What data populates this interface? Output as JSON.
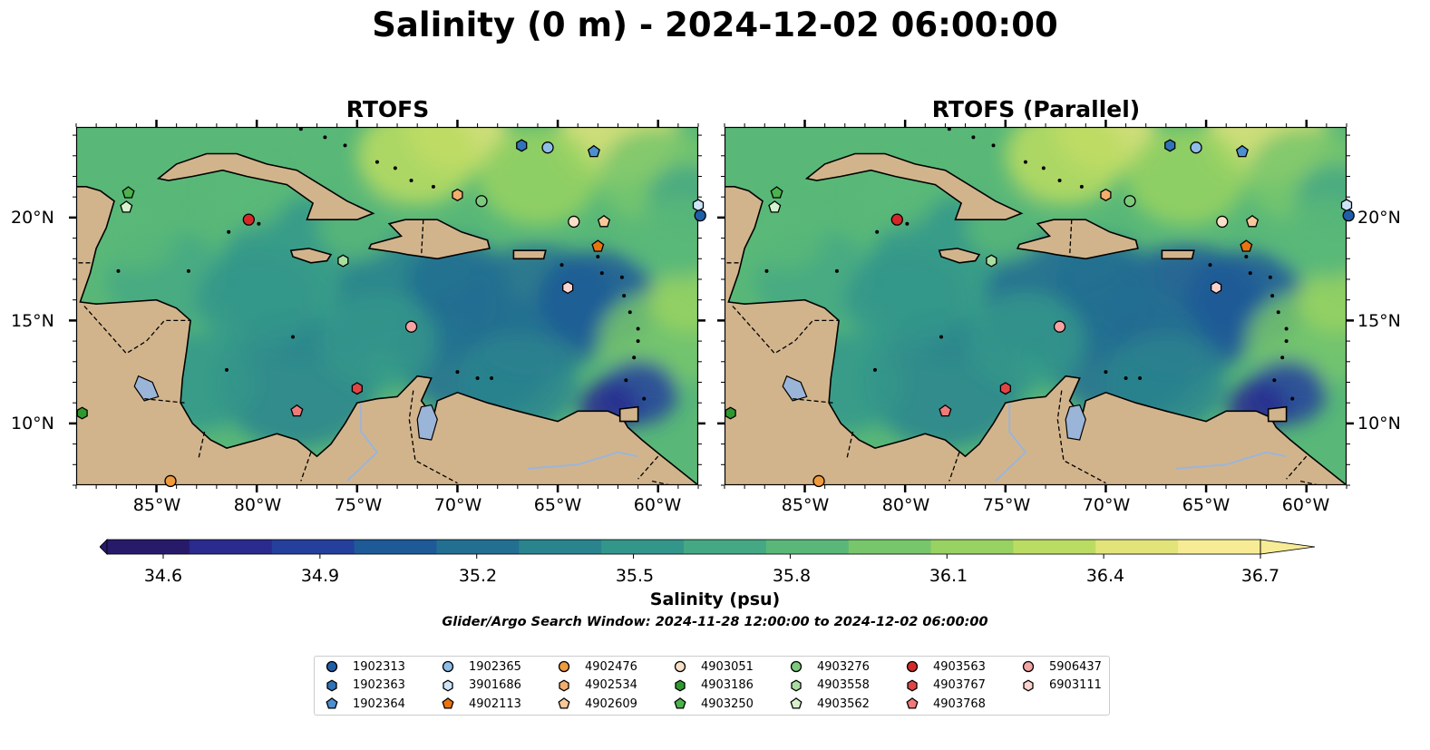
{
  "figure": {
    "title": "Salinity (0 m) - 2024-12-02 06:00:00",
    "panels": [
      {
        "title": "RTOFS",
        "lat_label_side": "left"
      },
      {
        "title": "RTOFS (Parallel)",
        "lat_label_side": "right"
      }
    ],
    "lat_ticks": [
      "20°N",
      "15°N",
      "10°N"
    ],
    "lon_ticks": [
      "85°W",
      "80°W",
      "75°W",
      "70°W",
      "65°W",
      "60°W"
    ]
  },
  "colorbar": {
    "label": "Salinity (psu)",
    "ticks": [
      "34.6",
      "34.9",
      "35.2",
      "35.5",
      "35.8",
      "36.1",
      "36.4",
      "36.7"
    ],
    "range": [
      34.6,
      36.7
    ],
    "extend": "both",
    "colormap": [
      "#281a6b",
      "#2a2a8f",
      "#253f9c",
      "#1e5a98",
      "#236f92",
      "#2a848e",
      "#33968b",
      "#45a884",
      "#59b878",
      "#77c66c",
      "#98d262",
      "#bbdc62",
      "#e2e47a",
      "#f7ec95"
    ]
  },
  "search_window": "Glider/Argo Search Window: 2024-11-28 12:00:00 to 2024-12-02 06:00:00",
  "colors": {
    "land": "#d2b48c",
    "deep_low_salinity": "#281a6b",
    "lake": "#9bb5d9"
  },
  "legend": {
    "placement": "bottom-center",
    "columns": 7,
    "items": [
      {
        "id": "1902313",
        "marker": "circle",
        "color": "#1f5fa8"
      },
      {
        "id": "1902363",
        "marker": "hexagon",
        "color": "#2f73b8"
      },
      {
        "id": "1902364",
        "marker": "pentagon",
        "color": "#4d8fd0"
      },
      {
        "id": "1902365",
        "marker": "circle",
        "color": "#8fbde8"
      },
      {
        "id": "3901686",
        "marker": "hexagon",
        "color": "#cfe5f7"
      },
      {
        "id": "4902113",
        "marker": "pentagon",
        "color": "#e8740f"
      },
      {
        "id": "4902476",
        "marker": "circle",
        "color": "#f09a3e"
      },
      {
        "id": "4902534",
        "marker": "hexagon",
        "color": "#f4ad6c"
      },
      {
        "id": "4902609",
        "marker": "pentagon",
        "color": "#f8c89a"
      },
      {
        "id": "4903051",
        "marker": "circle",
        "color": "#f8e0c8"
      },
      {
        "id": "4903186",
        "marker": "hexagon",
        "color": "#2e9a2e"
      },
      {
        "id": "4903250",
        "marker": "pentagon",
        "color": "#4cb34c"
      },
      {
        "id": "4903276",
        "marker": "circle",
        "color": "#7ccb7c"
      },
      {
        "id": "4903558",
        "marker": "hexagon",
        "color": "#a8dfa0"
      },
      {
        "id": "4903562",
        "marker": "pentagon",
        "color": "#d6f2cc"
      },
      {
        "id": "4903563",
        "marker": "circle",
        "color": "#d62728"
      },
      {
        "id": "4903767",
        "marker": "hexagon",
        "color": "#e04545"
      },
      {
        "id": "4903768",
        "marker": "pentagon",
        "color": "#ef7a7a"
      },
      {
        "id": "5906437",
        "marker": "circle",
        "color": "#f5a3a3"
      },
      {
        "id": "6903111",
        "marker": "hexagon",
        "color": "#fbd3d0"
      }
    ]
  },
  "platforms": [
    {
      "id": "1902363",
      "lon": -66.8,
      "lat": 23.5
    },
    {
      "id": "1902365",
      "lon": -65.5,
      "lat": 23.4
    },
    {
      "id": "1902364",
      "lon": -63.2,
      "lat": 23.2
    },
    {
      "id": "3901686",
      "lon": -58.0,
      "lat": 20.6
    },
    {
      "id": "1902313",
      "lon": -57.9,
      "lat": 20.1
    },
    {
      "id": "4903250",
      "lon": -86.4,
      "lat": 21.2
    },
    {
      "id": "4903562",
      "lon": -86.5,
      "lat": 20.5
    },
    {
      "id": "4903563",
      "lon": -80.4,
      "lat": 19.9
    },
    {
      "id": "4902534",
      "lon": -70.0,
      "lat": 21.1
    },
    {
      "id": "4903276",
      "lon": -68.8,
      "lat": 20.8
    },
    {
      "id": "4903051",
      "lon": -64.2,
      "lat": 19.8
    },
    {
      "id": "4902609",
      "lon": -62.7,
      "lat": 19.8
    },
    {
      "id": "4902113",
      "lon": -63.0,
      "lat": 18.6
    },
    {
      "id": "4903558",
      "lon": -75.7,
      "lat": 17.9
    },
    {
      "id": "6903111",
      "lon": -64.5,
      "lat": 16.6
    },
    {
      "id": "5906437",
      "lon": -72.3,
      "lat": 14.7
    },
    {
      "id": "4903767",
      "lon": -75.0,
      "lat": 11.7
    },
    {
      "id": "4903768",
      "lon": -78.0,
      "lat": 10.6
    },
    {
      "id": "4903186",
      "lon": -88.7,
      "lat": 10.5
    },
    {
      "id": "4902476",
      "lon": -84.3,
      "lat": 7.2
    }
  ]
}
